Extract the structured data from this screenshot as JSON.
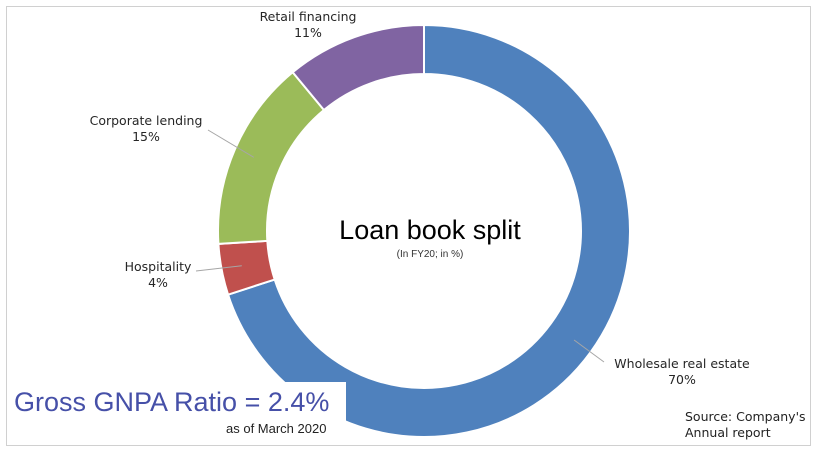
{
  "chart_data": {
    "type": "donut",
    "title": "Loan book split",
    "subtitle": "(In FY20; in %)",
    "slices": [
      {
        "label": "Wholesale real estate",
        "value": 70,
        "value_label": "70%",
        "color": "#4f81bd"
      },
      {
        "label": "Hospitality",
        "value": 4,
        "value_label": "4%",
        "color": "#c0504d"
      },
      {
        "label": "Corporate  lending",
        "value": 15,
        "value_label": "15%",
        "color": "#9bbb59"
      },
      {
        "label": "Retail  financing",
        "value": 11,
        "value_label": "11%",
        "color": "#8064a2"
      }
    ],
    "legend": "none"
  },
  "annotation": {
    "gnpa": "Gross GNPA Ratio = 2.4%",
    "gnpa_note": "as of March 2020",
    "source_line1": "Source: Company's",
    "source_line2": "Annual report"
  }
}
